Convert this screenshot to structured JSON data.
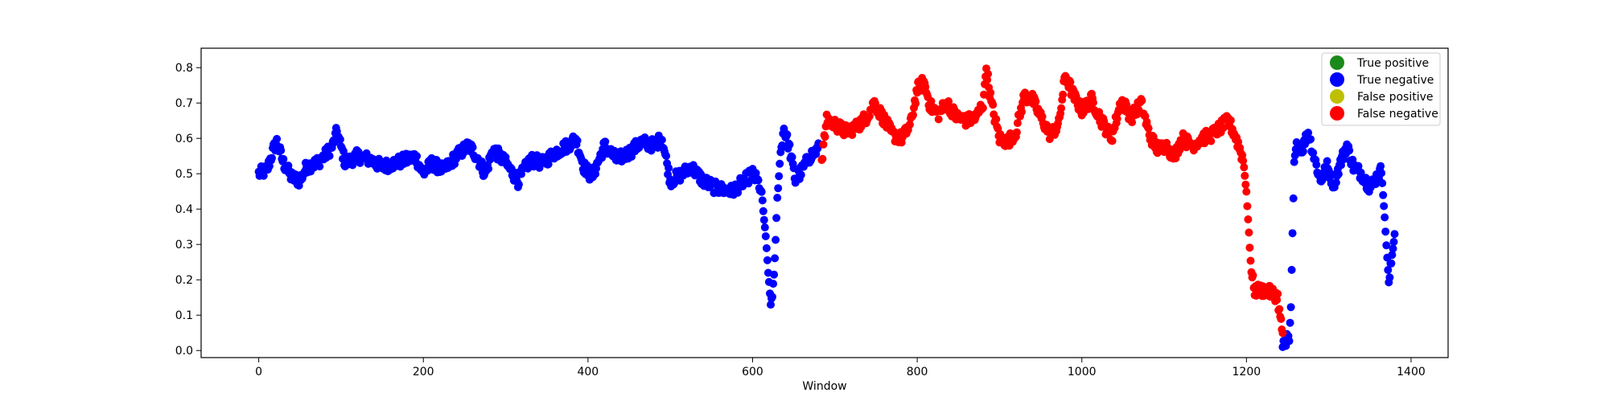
{
  "chart_data": {
    "type": "scatter",
    "title": "",
    "xlabel": "Window",
    "ylabel": "",
    "xlim": [
      -70,
      1445
    ],
    "ylim": [
      -0.02,
      0.855
    ],
    "xticks": [
      0,
      200,
      400,
      600,
      800,
      1000,
      1200,
      1400
    ],
    "yticks": [
      0.0,
      0.1,
      0.2,
      0.3,
      0.4,
      0.5,
      0.6,
      0.7,
      0.8
    ],
    "xtick_labels": [
      "0",
      "200",
      "400",
      "600",
      "800",
      "1000",
      "1200",
      "1400"
    ],
    "ytick_labels": [
      "0.0",
      "0.1",
      "0.2",
      "0.3",
      "0.4",
      "0.5",
      "0.6",
      "0.7",
      "0.8"
    ],
    "grid": false,
    "legend_position": "top-right",
    "legend": [
      {
        "label": "True positive",
        "color": "#1a8a1a"
      },
      {
        "label": "True negative",
        "color": "#0000ff"
      },
      {
        "label": "False positive",
        "color": "#bfbf00"
      },
      {
        "label": "False negative",
        "color": "#ff0000"
      }
    ],
    "series": [
      {
        "name": "True negative",
        "color": "#0000ff",
        "anchors": [
          [
            0,
            0.5
          ],
          [
            10,
            0.51
          ],
          [
            18,
            0.57
          ],
          [
            22,
            0.59
          ],
          [
            30,
            0.53
          ],
          [
            40,
            0.49
          ],
          [
            50,
            0.48
          ],
          [
            58,
            0.52
          ],
          [
            70,
            0.53
          ],
          [
            80,
            0.55
          ],
          [
            90,
            0.58
          ],
          [
            95,
            0.62
          ],
          [
            105,
            0.53
          ],
          [
            120,
            0.55
          ],
          [
            135,
            0.54
          ],
          [
            150,
            0.52
          ],
          [
            165,
            0.53
          ],
          [
            180,
            0.54
          ],
          [
            190,
            0.55
          ],
          [
            200,
            0.5
          ],
          [
            210,
            0.53
          ],
          [
            225,
            0.51
          ],
          [
            240,
            0.55
          ],
          [
            255,
            0.58
          ],
          [
            265,
            0.55
          ],
          [
            275,
            0.5
          ],
          [
            285,
            0.57
          ],
          [
            300,
            0.53
          ],
          [
            315,
            0.48
          ],
          [
            330,
            0.54
          ],
          [
            345,
            0.53
          ],
          [
            360,
            0.56
          ],
          [
            375,
            0.58
          ],
          [
            385,
            0.6
          ],
          [
            395,
            0.52
          ],
          [
            405,
            0.49
          ],
          [
            420,
            0.58
          ],
          [
            435,
            0.54
          ],
          [
            450,
            0.56
          ],
          [
            465,
            0.59
          ],
          [
            480,
            0.58
          ],
          [
            490,
            0.6
          ],
          [
            500,
            0.48
          ],
          [
            515,
            0.5
          ],
          [
            525,
            0.52
          ],
          [
            540,
            0.48
          ],
          [
            555,
            0.46
          ],
          [
            575,
            0.45
          ],
          [
            590,
            0.48
          ],
          [
            600,
            0.5
          ],
          [
            608,
            0.47
          ],
          [
            612,
            0.42
          ],
          [
            616,
            0.32
          ],
          [
            620,
            0.19
          ],
          [
            622,
            0.13
          ],
          [
            626,
            0.2
          ],
          [
            630,
            0.43
          ],
          [
            634,
            0.56
          ],
          [
            638,
            0.63
          ],
          [
            645,
            0.57
          ],
          [
            652,
            0.48
          ],
          [
            660,
            0.51
          ],
          [
            670,
            0.55
          ],
          [
            680,
            0.57
          ]
        ]
      },
      {
        "name": "True negative (late)",
        "color": "#0000ff",
        "anchors": [
          [
            1244,
            0.02
          ],
          [
            1248,
            0.03
          ],
          [
            1252,
            0.03
          ],
          [
            1254,
            0.12
          ],
          [
            1256,
            0.33
          ],
          [
            1258,
            0.53
          ],
          [
            1262,
            0.59
          ],
          [
            1268,
            0.57
          ],
          [
            1275,
            0.62
          ],
          [
            1282,
            0.55
          ],
          [
            1290,
            0.48
          ],
          [
            1298,
            0.52
          ],
          [
            1306,
            0.47
          ],
          [
            1314,
            0.53
          ],
          [
            1322,
            0.58
          ],
          [
            1330,
            0.52
          ],
          [
            1340,
            0.5
          ],
          [
            1350,
            0.46
          ],
          [
            1358,
            0.49
          ],
          [
            1364,
            0.51
          ],
          [
            1367,
            0.41
          ],
          [
            1370,
            0.3
          ],
          [
            1373,
            0.19
          ],
          [
            1376,
            0.25
          ],
          [
            1380,
            0.33
          ]
        ]
      },
      {
        "name": "False negative",
        "color": "#ff0000",
        "anchors": [
          [
            684,
            0.54
          ],
          [
            690,
            0.65
          ],
          [
            700,
            0.64
          ],
          [
            712,
            0.62
          ],
          [
            725,
            0.63
          ],
          [
            738,
            0.66
          ],
          [
            748,
            0.7
          ],
          [
            758,
            0.66
          ],
          [
            770,
            0.61
          ],
          [
            782,
            0.6
          ],
          [
            792,
            0.64
          ],
          [
            800,
            0.74
          ],
          [
            808,
            0.76
          ],
          [
            816,
            0.69
          ],
          [
            826,
            0.67
          ],
          [
            836,
            0.7
          ],
          [
            848,
            0.66
          ],
          [
            860,
            0.65
          ],
          [
            872,
            0.66
          ],
          [
            880,
            0.7
          ],
          [
            884,
            0.8
          ],
          [
            890,
            0.7
          ],
          [
            900,
            0.6
          ],
          [
            910,
            0.59
          ],
          [
            920,
            0.62
          ],
          [
            930,
            0.72
          ],
          [
            940,
            0.71
          ],
          [
            950,
            0.66
          ],
          [
            962,
            0.61
          ],
          [
            972,
            0.64
          ],
          [
            980,
            0.78
          ],
          [
            990,
            0.72
          ],
          [
            1000,
            0.68
          ],
          [
            1012,
            0.71
          ],
          [
            1024,
            0.65
          ],
          [
            1036,
            0.6
          ],
          [
            1048,
            0.71
          ],
          [
            1060,
            0.66
          ],
          [
            1072,
            0.7
          ],
          [
            1082,
            0.61
          ],
          [
            1092,
            0.57
          ],
          [
            1102,
            0.58
          ],
          [
            1112,
            0.55
          ],
          [
            1122,
            0.6
          ],
          [
            1134,
            0.58
          ],
          [
            1146,
            0.6
          ],
          [
            1158,
            0.61
          ],
          [
            1168,
            0.63
          ],
          [
            1178,
            0.65
          ],
          [
            1186,
            0.61
          ],
          [
            1192,
            0.57
          ],
          [
            1196,
            0.54
          ],
          [
            1200,
            0.45
          ],
          [
            1203,
            0.33
          ],
          [
            1206,
            0.22
          ],
          [
            1210,
            0.17
          ],
          [
            1222,
            0.17
          ],
          [
            1234,
            0.16
          ],
          [
            1238,
            0.15
          ],
          [
            1241,
            0.09
          ],
          [
            1244,
            0.05
          ]
        ]
      }
    ]
  }
}
